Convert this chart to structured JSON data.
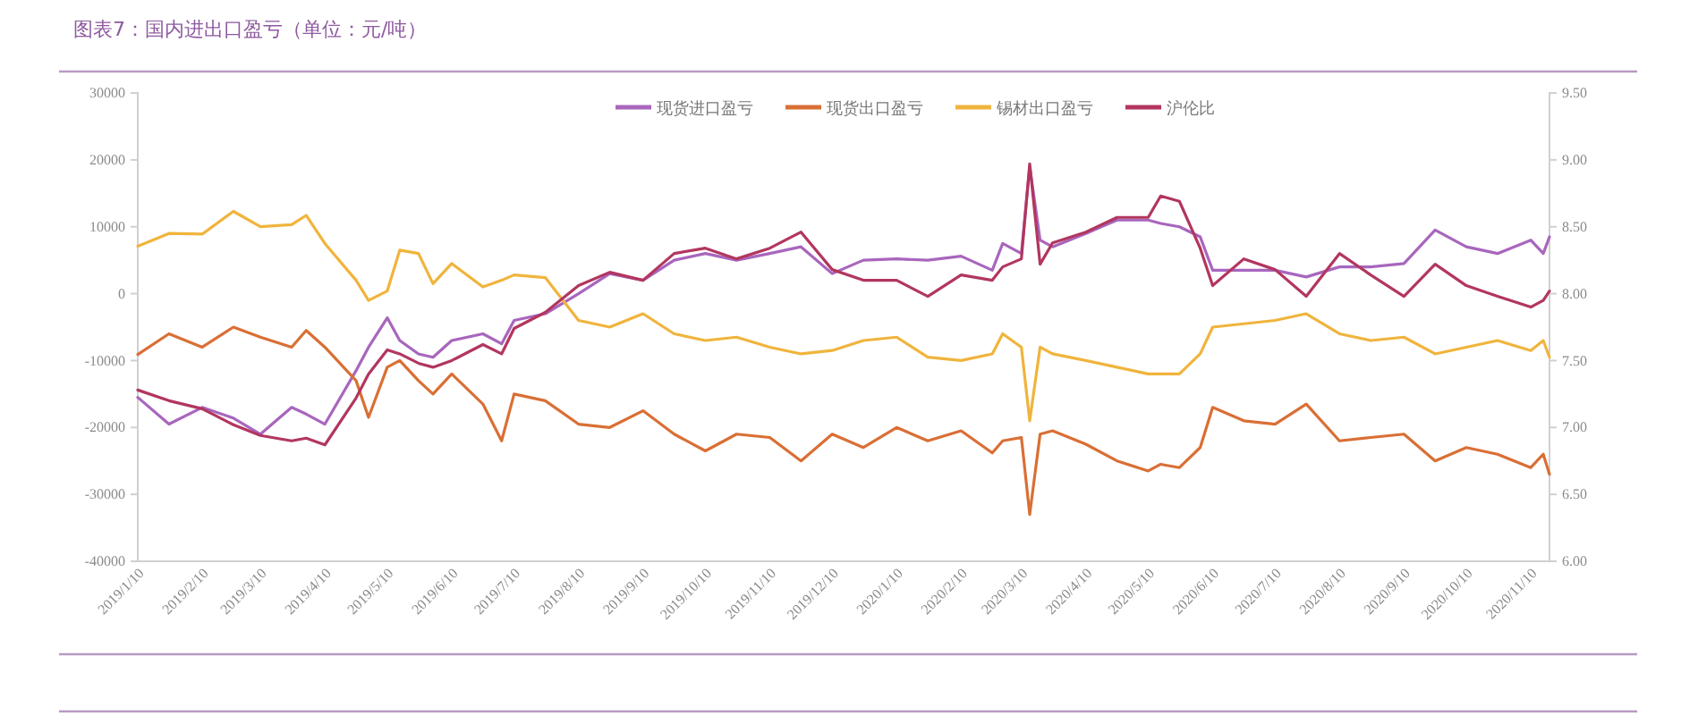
{
  "chart_data": {
    "type": "line",
    "title": "图表7：国内进出口盈亏（单位：元/吨）",
    "x": [
      "2019-01-10",
      "2019-01-25",
      "2019-02-10",
      "2019-02-25",
      "2019-03-10",
      "2019-03-25",
      "2019-04-01",
      "2019-04-10",
      "2019-04-25",
      "2019-05-01",
      "2019-05-10",
      "2019-05-16",
      "2019-05-25",
      "2019-06-01",
      "2019-06-10",
      "2019-06-25",
      "2019-07-04",
      "2019-07-10",
      "2019-07-25",
      "2019-08-10",
      "2019-08-25",
      "2019-09-10",
      "2019-09-25",
      "2019-10-10",
      "2019-10-25",
      "2019-11-10",
      "2019-11-25",
      "2019-12-10",
      "2019-12-25",
      "2020-01-10",
      "2020-01-25",
      "2020-02-10",
      "2020-02-25",
      "2020-03-01",
      "2020-03-10",
      "2020-03-14",
      "2020-03-19",
      "2020-03-25",
      "2020-04-10",
      "2020-04-25",
      "2020-05-10",
      "2020-05-16",
      "2020-05-25",
      "2020-06-04",
      "2020-06-10",
      "2020-06-25",
      "2020-07-10",
      "2020-07-25",
      "2020-08-10",
      "2020-08-25",
      "2020-09-10",
      "2020-09-25",
      "2020-10-10",
      "2020-10-25",
      "2020-11-10",
      "2020-11-16",
      "2020-11-19"
    ],
    "series": [
      {
        "name": "现货进口盈亏",
        "color": "#a866bd",
        "values": [
          -15500,
          -19500,
          -17000,
          -18600,
          -21000,
          -17000,
          -18000,
          -19500,
          -11500,
          -8000,
          -3600,
          -7000,
          -9000,
          -9500,
          -7000,
          -6000,
          -7500,
          -4000,
          -3000,
          0,
          3000,
          2000,
          5000,
          6000,
          5000,
          6000,
          7000,
          3000,
          5000,
          5200,
          5000,
          5600,
          3500,
          7500,
          6000,
          19000,
          8000,
          7000,
          9000,
          11000,
          11000,
          10500,
          10000,
          8500,
          3500,
          3500,
          3500,
          2500,
          4000,
          4000,
          4500,
          9500,
          7000,
          6000,
          8000,
          6000,
          8500
        ]
      },
      {
        "name": "现货出口盈亏",
        "color": "#d96f35",
        "values": [
          -9100,
          -6000,
          -8000,
          -5000,
          -6500,
          -8000,
          -5500,
          -8000,
          -13000,
          -18500,
          -11000,
          -10000,
          -13000,
          -15000,
          -12000,
          -16500,
          -22000,
          -15000,
          -16000,
          -19500,
          -20000,
          -17500,
          -21000,
          -23500,
          -21000,
          -21500,
          -25000,
          -21000,
          -23000,
          -20000,
          -22000,
          -20500,
          -23800,
          -22000,
          -21500,
          -33000,
          -21000,
          -20500,
          -22500,
          -25000,
          -26500,
          -25500,
          -26000,
          -23000,
          -17000,
          -19000,
          -19500,
          -16500,
          -22000,
          -21500,
          -21000,
          -25000,
          -23000,
          -24000,
          -26000,
          -24000,
          -27000
        ]
      },
      {
        "name": "锡材出口盈亏",
        "color": "#f0b43c",
        "values": [
          7100,
          9000,
          8900,
          12300,
          10000,
          10300,
          11700,
          7500,
          2000,
          -1000,
          400,
          6500,
          6000,
          1500,
          4500,
          1000,
          2000,
          2800,
          2400,
          -4000,
          -5000,
          -3000,
          -6000,
          -7000,
          -6500,
          -8000,
          -9000,
          -8500,
          -7000,
          -6500,
          -9500,
          -10000,
          -9000,
          -6000,
          -8000,
          -19000,
          -8000,
          -9000,
          -10000,
          -11000,
          -12000,
          -12000,
          -12000,
          -9000,
          -5000,
          -4500,
          -4000,
          -3000,
          -6000,
          -7000,
          -6500,
          -9000,
          -8000,
          -7000,
          -8500,
          -7000,
          -9500
        ]
      },
      {
        "name": "沪伦比",
        "color": "#b2365f",
        "axis": "y2",
        "values": [
          7.28,
          7.2,
          7.14,
          7.02,
          6.94,
          6.9,
          6.92,
          6.87,
          7.22,
          7.4,
          7.58,
          7.55,
          7.48,
          7.45,
          7.5,
          7.62,
          7.55,
          7.74,
          7.86,
          8.06,
          8.16,
          8.1,
          8.3,
          8.34,
          8.26,
          8.34,
          8.46,
          8.18,
          8.1,
          8.1,
          7.98,
          8.14,
          8.1,
          8.2,
          8.26,
          8.97,
          8.22,
          8.38,
          8.46,
          8.57,
          8.57,
          8.73,
          8.69,
          8.34,
          8.06,
          8.26,
          8.18,
          7.98,
          8.3,
          8.14,
          7.98,
          8.22,
          8.06,
          7.98,
          7.9,
          7.95,
          8.02
        ]
      }
    ],
    "xlim": [
      "2019-01-10",
      "2020-11-19"
    ],
    "xticks": [
      {
        "value": "2019-01-10",
        "label": "2019/1/10"
      },
      {
        "value": "2019-02-10",
        "label": "2019/2/10"
      },
      {
        "value": "2019-03-10",
        "label": "2019/3/10"
      },
      {
        "value": "2019-04-10",
        "label": "2019/4/10"
      },
      {
        "value": "2019-05-10",
        "label": "2019/5/10"
      },
      {
        "value": "2019-06-10",
        "label": "2019/6/10"
      },
      {
        "value": "2019-07-10",
        "label": "2019/7/10"
      },
      {
        "value": "2019-08-10",
        "label": "2019/8/10"
      },
      {
        "value": "2019-09-10",
        "label": "2019/9/10"
      },
      {
        "value": "2019-10-10",
        "label": "2019/10/10"
      },
      {
        "value": "2019-11-10",
        "label": "2019/11/10"
      },
      {
        "value": "2019-12-10",
        "label": "2019/12/10"
      },
      {
        "value": "2020-01-10",
        "label": "2020/1/10"
      },
      {
        "value": "2020-02-10",
        "label": "2020/2/10"
      },
      {
        "value": "2020-03-10",
        "label": "2020/3/10"
      },
      {
        "value": "2020-04-10",
        "label": "2020/4/10"
      },
      {
        "value": "2020-05-10",
        "label": "2020/5/10"
      },
      {
        "value": "2020-06-10",
        "label": "2020/6/10"
      },
      {
        "value": "2020-07-10",
        "label": "2020/7/10"
      },
      {
        "value": "2020-08-10",
        "label": "2020/8/10"
      },
      {
        "value": "2020-09-10",
        "label": "2020/9/10"
      },
      {
        "value": "2020-10-10",
        "label": "2020/10/10"
      },
      {
        "value": "2020-11-10",
        "label": "2020/11/10"
      }
    ],
    "ylim": [
      -40000,
      30000
    ],
    "yticks": [
      -40000,
      -30000,
      -20000,
      -10000,
      0,
      10000,
      20000,
      30000
    ],
    "y2lim": [
      6,
      9.5
    ],
    "y2ticks": [
      {
        "value": 6,
        "label": "6.00"
      },
      {
        "value": 6.5,
        "label": "6.50"
      },
      {
        "value": 7,
        "label": "7.00"
      },
      {
        "value": 7.5,
        "label": "7.50"
      },
      {
        "value": 8,
        "label": "8.00"
      },
      {
        "value": 8.5,
        "label": "8.50"
      },
      {
        "value": 9,
        "label": "9.00"
      },
      {
        "value": 9.5,
        "label": "9.50"
      }
    ],
    "legend": "top"
  }
}
